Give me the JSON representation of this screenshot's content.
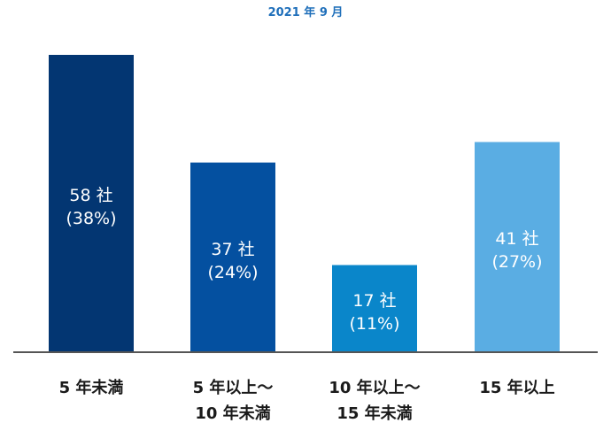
{
  "chart_data": {
    "type": "bar",
    "title": "2021 年 9 月",
    "categories": [
      [
        "5 年未満"
      ],
      [
        "5 年以上～",
        "10 年未満"
      ],
      [
        "10 年以上～",
        "15 年未満"
      ],
      [
        "15 年以上"
      ]
    ],
    "values": [
      58,
      37,
      17,
      41
    ],
    "value_labels": [
      "58 社",
      "37 社",
      "17 社",
      "41 社"
    ],
    "percent_labels": [
      "(38%)",
      "(24%)",
      "(11%)",
      "(27%)"
    ],
    "ylim": [
      0,
      60
    ],
    "grid": false,
    "colors": {
      "bars": [
        "#033672",
        "#0450a0",
        "#0a86ca",
        "#5aade3"
      ],
      "title": "#1f6fba",
      "baseline": "#555555",
      "bar_text": "#ffffff"
    }
  }
}
